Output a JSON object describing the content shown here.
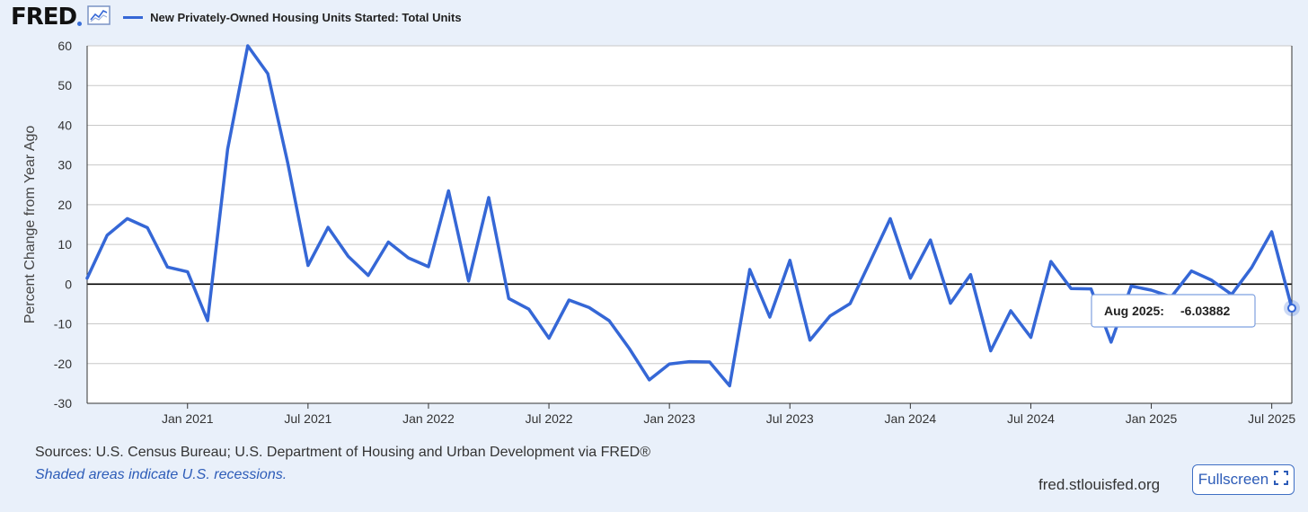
{
  "header": {
    "logo_text": "FRED",
    "series_title": "New Privately-Owned Housing Units Started: Total Units",
    "accent_color": "#3567d6"
  },
  "footer": {
    "sources": "Sources: U.S. Census Bureau; U.S. Department of Housing and Urban Development via FRED®",
    "recession_note": "Shaded areas indicate U.S. recessions.",
    "site": "fred.stlouisfed.org",
    "fullscreen_label": "Fullscreen"
  },
  "tooltip": {
    "label": "Aug 2025:",
    "value": "-6.03882"
  },
  "chart_data": {
    "type": "line",
    "title": "",
    "xlabel": "",
    "ylabel": "Percent Change from Year Ago",
    "ylim": [
      -30,
      60
    ],
    "yticks": [
      60,
      50,
      40,
      30,
      20,
      10,
      0,
      -10,
      -20,
      -30
    ],
    "xticks": [
      "Jan 2021",
      "Jul 2021",
      "Jan 2022",
      "Jul 2022",
      "Jan 2023",
      "Jul 2023",
      "Jan 2024",
      "Jul 2024",
      "Jan 2025",
      "Jul 2025"
    ],
    "xrange": [
      "2020-08",
      "2025-08"
    ],
    "grid": true,
    "series": [
      {
        "name": "New Privately-Owned Housing Units Started: Total Units",
        "color": "#3567d6",
        "x": [
          "2020-08",
          "2020-09",
          "2020-10",
          "2020-11",
          "2020-12",
          "2021-01",
          "2021-02",
          "2021-03",
          "2021-04",
          "2021-05",
          "2021-06",
          "2021-07",
          "2021-08",
          "2021-09",
          "2021-10",
          "2021-11",
          "2021-12",
          "2022-01",
          "2022-02",
          "2022-03",
          "2022-04",
          "2022-05",
          "2022-06",
          "2022-07",
          "2022-08",
          "2022-09",
          "2022-10",
          "2022-11",
          "2022-12",
          "2023-01",
          "2023-02",
          "2023-03",
          "2023-04",
          "2023-05",
          "2023-06",
          "2023-07",
          "2023-08",
          "2023-09",
          "2023-10",
          "2023-11",
          "2023-12",
          "2024-01",
          "2024-02",
          "2024-03",
          "2024-04",
          "2024-05",
          "2024-06",
          "2024-07",
          "2024-08",
          "2024-09",
          "2024-10",
          "2024-11",
          "2024-12",
          "2025-01",
          "2025-02",
          "2025-03",
          "2025-04",
          "2025-05",
          "2025-06",
          "2025-07",
          "2025-08"
        ],
        "values": [
          1.5,
          12.3,
          16.5,
          14.2,
          4.3,
          3.1,
          -9.2,
          34.0,
          60.0,
          53.0,
          30.3,
          4.7,
          14.3,
          7.0,
          2.2,
          10.6,
          6.6,
          4.4,
          23.5,
          0.8,
          21.8,
          -3.6,
          -6.3,
          -13.6,
          -4.0,
          -5.9,
          -9.2,
          -16.2,
          -24.1,
          -20.1,
          -19.5,
          -19.6,
          -25.6,
          3.7,
          -8.3,
          6.0,
          -14.1,
          -8.0,
          -4.9,
          5.7,
          16.5,
          1.5,
          11.1,
          -4.8,
          2.4,
          -16.8,
          -6.7,
          -13.4,
          5.7,
          -1.1,
          -1.2,
          -14.6,
          -0.5,
          -1.5,
          -3.2,
          3.3,
          1.0,
          -2.6,
          4.2,
          13.2,
          -6.03882
        ]
      }
    ]
  }
}
